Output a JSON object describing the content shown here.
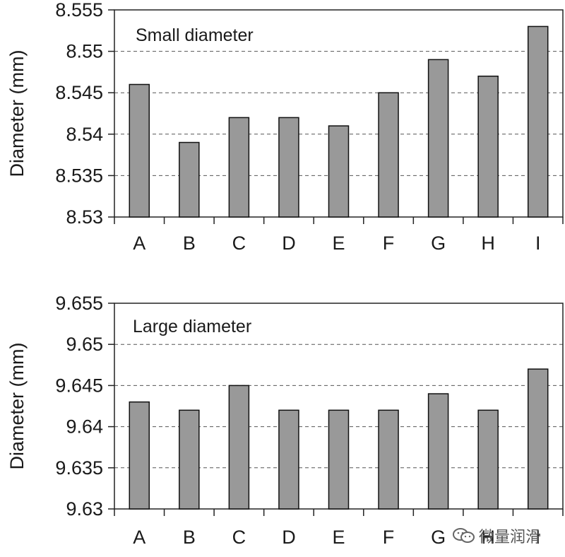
{
  "chart_data": [
    {
      "type": "bar",
      "title": "Small diameter",
      "ylabel": "Diameter (mm)",
      "xlabel": "",
      "categories": [
        "A",
        "B",
        "C",
        "D",
        "E",
        "F",
        "G",
        "H",
        "I"
      ],
      "values": [
        8.546,
        8.539,
        8.542,
        8.542,
        8.541,
        8.545,
        8.549,
        8.547,
        8.553
      ],
      "ylim": [
        8.53,
        8.555
      ],
      "yticks": [
        "8.53",
        "8.535",
        "8.54",
        "8.545",
        "8.55",
        "8.555"
      ],
      "grid": "horizontal dashed",
      "bar_color": "#999999"
    },
    {
      "type": "bar",
      "title": "Large diameter",
      "ylabel": "Diameter (mm)",
      "xlabel": "",
      "categories": [
        "A",
        "B",
        "C",
        "D",
        "E",
        "F",
        "G",
        "H",
        "I"
      ],
      "values": [
        9.643,
        9.642,
        9.645,
        9.642,
        9.642,
        9.642,
        9.644,
        9.642,
        9.647
      ],
      "ylim": [
        9.63,
        9.655
      ],
      "yticks": [
        "9.63",
        "9.635",
        "9.64",
        "9.645",
        "9.65",
        "9.655"
      ],
      "grid": "horizontal dashed",
      "bar_color": "#999999"
    }
  ],
  "watermark": {
    "icon": "wechat-icon",
    "text": "微量润滑"
  }
}
